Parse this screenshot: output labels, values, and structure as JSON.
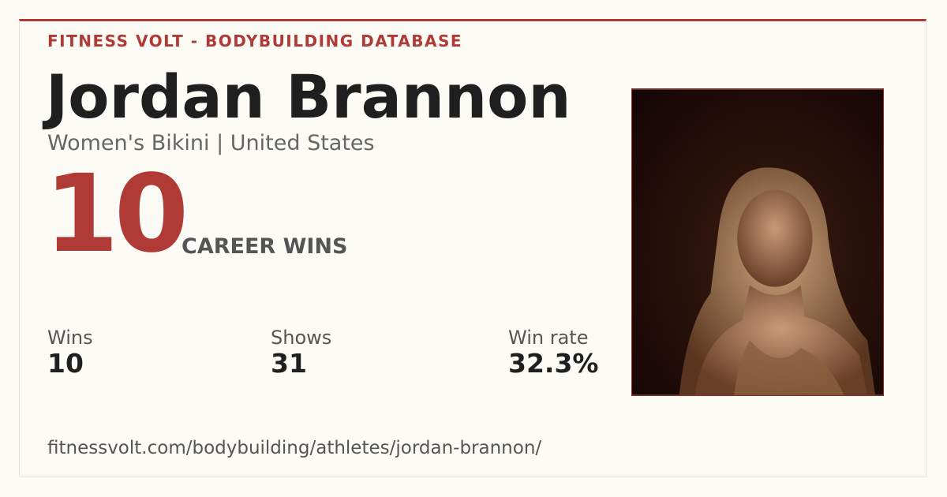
{
  "header": {
    "brand": "FITNESS VOLT - BODYBUILDING DATABASE"
  },
  "athlete": {
    "name": "Jordan Brannon",
    "subtitle": "Women's Bikini | United States"
  },
  "highlight": {
    "number": "10",
    "label": "CAREER WINS"
  },
  "stats": [
    {
      "label": "Wins",
      "value": "10"
    },
    {
      "label": "Shows",
      "value": "31"
    },
    {
      "label": "Win rate",
      "value": "32.3%"
    }
  ],
  "footer": {
    "url": "fitnessvolt.com/bodybuilding/athletes/jordan-brannon/"
  }
}
